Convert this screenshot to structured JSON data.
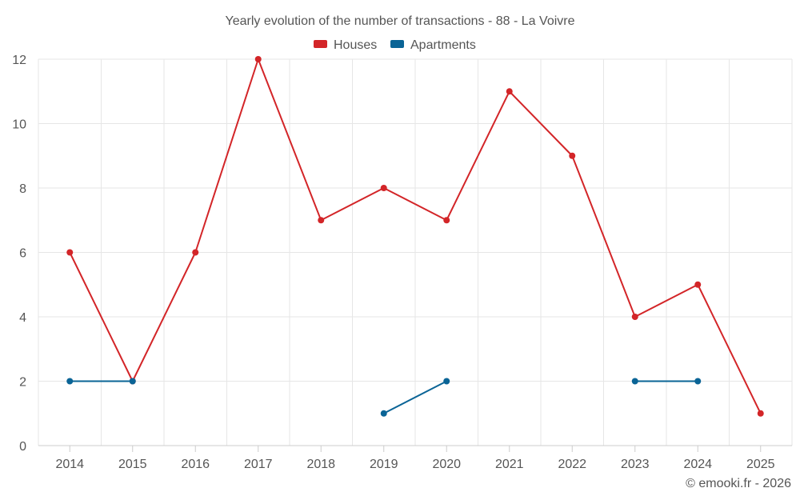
{
  "chart_data": {
    "type": "line",
    "title": "Yearly evolution of the number of transactions - 88 - La Voivre",
    "categories": [
      "2014",
      "2015",
      "2016",
      "2017",
      "2018",
      "2019",
      "2020",
      "2021",
      "2022",
      "2023",
      "2024",
      "2025"
    ],
    "ylim": [
      0,
      12
    ],
    "yticks": [
      0,
      2,
      4,
      6,
      8,
      10,
      12
    ],
    "grid": true,
    "legend_position": "top-center",
    "series": [
      {
        "name": "Houses",
        "color": "#d32528",
        "values": [
          6,
          2,
          6,
          12,
          7,
          8,
          7,
          11,
          9,
          4,
          5,
          1
        ]
      },
      {
        "name": "Apartments",
        "color": "#0a6496",
        "values": [
          2,
          2,
          null,
          null,
          null,
          1,
          2,
          null,
          null,
          2,
          2,
          null
        ]
      }
    ],
    "credit": "© emooki.fr - 2026"
  }
}
